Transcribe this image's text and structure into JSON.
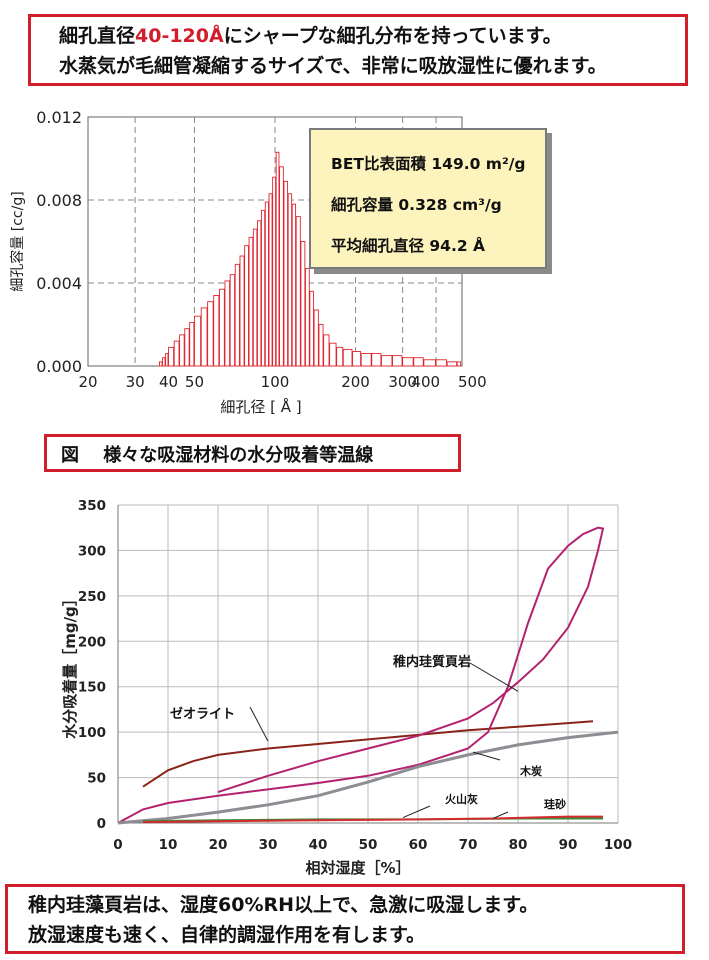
{
  "top_note": {
    "line1_pre": "細孔直径",
    "line1_highlight": "40-120Å",
    "line1_post": "にシャープな細孔分布を持っています。",
    "line2": "水蒸気が毛細管凝縮するサイズで、非常に吸放湿性に優れます。"
  },
  "figure_heading": "図　 様々な吸湿材料の水分吸着等温線",
  "bottom_note": {
    "line1": "稚内珪藻頁岩は、湿度60%RH以上で、急激に吸湿します。",
    "line2": "放湿速度も速く、自律的調湿作用を有します。"
  },
  "properties_box": {
    "surface_area": "BET比表面積  149.0 m²/g",
    "pore_volume": "細孔容量 0.328 cm³/g",
    "mean_pore_diameter": "平均細孔直径 94.2 Å"
  },
  "colors": {
    "accent_red": "#d01e2c",
    "histogram": "#e0252f",
    "box_fill": "#fcf3bd"
  },
  "chart_data": [
    {
      "type": "bar",
      "xlabel": "細孔径 [ Å ]",
      "ylabel": "細孔容量 [cc/g]",
      "x_scale": "log",
      "xlim": [
        20,
        500
      ],
      "ylim": [
        0,
        0.012
      ],
      "xticks": [
        20,
        30,
        40,
        50,
        100,
        200,
        300,
        400,
        500
      ],
      "xtick_labels": [
        "20",
        "30",
        "40",
        "50",
        "100",
        "200",
        "300",
        "400",
        "500"
      ],
      "yticks": [
        0,
        0.004,
        0.008,
        0.012
      ],
      "ytick_labels": [
        "0.000",
        "0.004",
        "0.008",
        "0.012"
      ],
      "grid": true,
      "bins": [
        {
          "x": 37,
          "y": 0.0002
        },
        {
          "x": 38,
          "y": 0.0004
        },
        {
          "x": 39,
          "y": 0.0006
        },
        {
          "x": 40,
          "y": 0.0009
        },
        {
          "x": 42,
          "y": 0.0012
        },
        {
          "x": 44,
          "y": 0.0015
        },
        {
          "x": 46,
          "y": 0.0018
        },
        {
          "x": 48,
          "y": 0.0021
        },
        {
          "x": 50,
          "y": 0.0024
        },
        {
          "x": 53,
          "y": 0.0028
        },
        {
          "x": 56,
          "y": 0.0031
        },
        {
          "x": 59,
          "y": 0.0034
        },
        {
          "x": 62,
          "y": 0.0037
        },
        {
          "x": 65,
          "y": 0.0041
        },
        {
          "x": 68,
          "y": 0.0044
        },
        {
          "x": 71,
          "y": 0.0049
        },
        {
          "x": 74,
          "y": 0.0053
        },
        {
          "x": 77,
          "y": 0.0058
        },
        {
          "x": 80,
          "y": 0.0062
        },
        {
          "x": 83,
          "y": 0.0066
        },
        {
          "x": 86,
          "y": 0.007
        },
        {
          "x": 89,
          "y": 0.0075
        },
        {
          "x": 92,
          "y": 0.0079
        },
        {
          "x": 95,
          "y": 0.0083
        },
        {
          "x": 98,
          "y": 0.0091
        },
        {
          "x": 101,
          "y": 0.0103
        },
        {
          "x": 104,
          "y": 0.0096
        },
        {
          "x": 108,
          "y": 0.0089
        },
        {
          "x": 112,
          "y": 0.0083
        },
        {
          "x": 116,
          "y": 0.0078
        },
        {
          "x": 120,
          "y": 0.0072
        },
        {
          "x": 125,
          "y": 0.006
        },
        {
          "x": 130,
          "y": 0.0047
        },
        {
          "x": 135,
          "y": 0.0036
        },
        {
          "x": 140,
          "y": 0.0027
        },
        {
          "x": 146,
          "y": 0.002
        },
        {
          "x": 152,
          "y": 0.0015
        },
        {
          "x": 160,
          "y": 0.0011
        },
        {
          "x": 170,
          "y": 0.0009
        },
        {
          "x": 180,
          "y": 0.0008
        },
        {
          "x": 195,
          "y": 0.0007
        },
        {
          "x": 210,
          "y": 0.0006
        },
        {
          "x": 230,
          "y": 0.0006
        },
        {
          "x": 250,
          "y": 0.0005
        },
        {
          "x": 275,
          "y": 0.0005
        },
        {
          "x": 300,
          "y": 0.0004
        },
        {
          "x": 330,
          "y": 0.0004
        },
        {
          "x": 360,
          "y": 0.0003
        },
        {
          "x": 400,
          "y": 0.0003
        },
        {
          "x": 440,
          "y": 0.0002
        },
        {
          "x": 480,
          "y": 0.0002
        }
      ]
    },
    {
      "type": "line",
      "xlabel": "相対湿度［%］",
      "ylabel": "水分吸着量［mg/g］",
      "xlim": [
        0,
        100
      ],
      "ylim": [
        0,
        350
      ],
      "xticks": [
        0,
        10,
        20,
        30,
        40,
        50,
        60,
        70,
        80,
        90,
        100
      ],
      "yticks": [
        0,
        50,
        100,
        150,
        200,
        250,
        300,
        350
      ],
      "grid": true,
      "series": [
        {
          "name": "ゼオライト",
          "color": "#8a2418",
          "points": [
            [
              5,
              40
            ],
            [
              10,
              58
            ],
            [
              15,
              68
            ],
            [
              20,
              75
            ],
            [
              30,
              82
            ],
            [
              40,
              87
            ],
            [
              50,
              92
            ],
            [
              60,
              97
            ],
            [
              70,
              102
            ],
            [
              80,
              106
            ],
            [
              90,
              110
            ],
            [
              95,
              112
            ]
          ],
          "label_point": [
            30,
            90
          ]
        },
        {
          "name": "稚内珪質頁岩",
          "color": "#b4226f",
          "points": [
            [
              0,
              0
            ],
            [
              5,
              15
            ],
            [
              10,
              22
            ],
            [
              20,
              30
            ],
            [
              30,
              37
            ],
            [
              40,
              44
            ],
            [
              50,
              52
            ],
            [
              60,
              64
            ],
            [
              70,
              82
            ],
            [
              74,
              100
            ],
            [
              78,
              150
            ],
            [
              82,
              220
            ],
            [
              86,
              280
            ],
            [
              90,
              305
            ],
            [
              93,
              318
            ],
            [
              96,
              325
            ],
            [
              97,
              324
            ],
            [
              96,
              300
            ],
            [
              94,
              260
            ],
            [
              90,
              215
            ],
            [
              85,
              180
            ],
            [
              80,
              155
            ],
            [
              75,
              132
            ],
            [
              70,
              115
            ],
            [
              60,
              96
            ],
            [
              50,
              82
            ],
            [
              40,
              68
            ],
            [
              30,
              52
            ],
            [
              20,
              34
            ]
          ],
          "label_point": [
            80,
            145
          ]
        },
        {
          "name": "木炭",
          "color": "#8d8d93",
          "points": [
            [
              0,
              0
            ],
            [
              10,
              5
            ],
            [
              20,
              12
            ],
            [
              30,
              20
            ],
            [
              40,
              30
            ],
            [
              50,
              45
            ],
            [
              60,
              62
            ],
            [
              70,
              75
            ],
            [
              80,
              86
            ],
            [
              90,
              94
            ],
            [
              100,
              100
            ]
          ],
          "label_point": [
            71,
            78
          ]
        },
        {
          "name": "火山灰",
          "color": "#3c8a3c",
          "points": [
            [
              5,
              2
            ],
            [
              20,
              3
            ],
            [
              40,
              4
            ],
            [
              60,
              4
            ],
            [
              80,
              5
            ],
            [
              97,
              5
            ]
          ],
          "label_point": [
            57,
            6
          ]
        },
        {
          "name": "珪砂",
          "color": "#d22c2c",
          "points": [
            [
              5,
              1
            ],
            [
              20,
              2
            ],
            [
              40,
              3
            ],
            [
              60,
              4
            ],
            [
              75,
              5
            ],
            [
              90,
              7
            ],
            [
              97,
              7
            ]
          ],
          "label_point": [
            75,
            5
          ]
        }
      ]
    }
  ]
}
